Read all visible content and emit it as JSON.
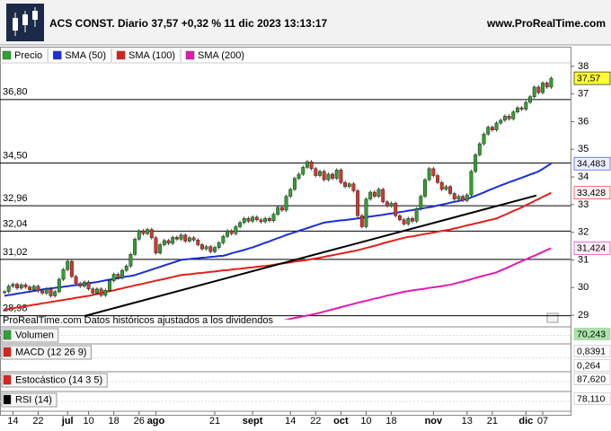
{
  "chart_data": {
    "type": "candlestick",
    "title": "ACS CONST. Diario 37,57 +0,32 % 11 dic 2023 13:13:17",
    "site": "www.ProRealTime.com",
    "note": "ProRealTime.com Datos históricos ajustados a los dividendos",
    "categories": [
      null,
      null,
      "14",
      null,
      null,
      null,
      null,
      null,
      "22",
      null,
      null,
      null,
      null,
      null,
      null,
      "jul",
      null,
      null,
      null,
      null,
      "10",
      null,
      null,
      null,
      null,
      null,
      "18",
      null,
      null,
      null,
      null,
      null,
      "26",
      null,
      null,
      null,
      "ago",
      null,
      null,
      null,
      null,
      null,
      null,
      null,
      null,
      null,
      null,
      null,
      null,
      null,
      "21",
      null,
      null,
      null,
      null,
      null,
      null,
      null,
      null,
      "sept",
      null,
      null,
      null,
      null,
      null,
      null,
      null,
      null,
      "14",
      null,
      null,
      null,
      null,
      null,
      "22",
      null,
      null,
      null,
      null,
      null,
      "oct",
      null,
      null,
      null,
      null,
      null,
      "10",
      null,
      null,
      null,
      null,
      null,
      "18",
      null,
      null,
      null,
      null,
      null,
      null,
      null,
      null,
      null,
      "nov",
      null,
      null,
      null,
      null,
      null,
      null,
      null,
      "13",
      null,
      null,
      null,
      null,
      null,
      "21",
      null,
      null,
      null,
      null,
      null,
      null,
      null,
      "dic",
      null,
      null,
      null,
      "07",
      null,
      null
    ],
    "candle_colors": {
      "up": "#2fa32f",
      "down": "#d8362c"
    },
    "series": [
      {
        "name": "Precio",
        "color": "#2fa32f",
        "values": [
          29.85,
          30.05,
          30.12,
          29.98,
          30.1,
          30.02,
          29.92,
          30.05,
          29.88,
          29.8,
          29.95,
          29.7,
          29.85,
          30.3,
          30.65,
          30.95,
          30.4,
          30.15,
          30.05,
          30.2,
          29.95,
          29.8,
          29.95,
          29.72,
          29.9,
          30.25,
          30.48,
          30.35,
          30.62,
          30.78,
          31.2,
          31.75,
          32.05,
          31.95,
          32.1,
          31.8,
          31.25,
          31.55,
          31.7,
          31.6,
          31.82,
          31.75,
          31.9,
          31.68,
          31.8,
          31.72,
          31.55,
          31.4,
          31.48,
          31.3,
          31.45,
          31.62,
          31.85,
          32.05,
          31.95,
          32.2,
          32.35,
          32.5,
          32.4,
          32.55,
          32.45,
          32.38,
          32.5,
          32.42,
          32.65,
          32.9,
          32.8,
          33.3,
          33.55,
          33.95,
          34.1,
          34.35,
          34.55,
          34.3,
          34.05,
          34.2,
          33.9,
          34.1,
          33.95,
          34.25,
          33.8,
          33.65,
          33.75,
          33.5,
          32.6,
          32.2,
          33.2,
          33.45,
          33.3,
          33.55,
          33.1,
          32.95,
          33.05,
          32.6,
          32.45,
          32.3,
          32.5,
          32.4,
          32.85,
          33.3,
          33.9,
          34.3,
          34.05,
          33.8,
          33.55,
          33.65,
          33.4,
          33.2,
          33.3,
          33.15,
          33.35,
          34.2,
          34.8,
          35.2,
          35.55,
          35.8,
          35.7,
          35.95,
          36.05,
          36.2,
          36.1,
          36.35,
          36.5,
          36.45,
          36.7,
          36.9,
          37.25,
          37.05,
          37.4,
          37.25,
          37.57
        ]
      },
      {
        "name": "SMA (50)",
        "color": "#1a2fd6",
        "values": [
          29.7,
          29.73,
          29.75,
          29.78,
          29.8,
          29.83,
          29.85,
          29.88,
          29.9,
          29.93,
          29.95,
          29.97,
          29.99,
          30.01,
          30.03,
          30.05,
          30.07,
          30.09,
          30.11,
          30.13,
          30.15,
          30.18,
          30.2,
          30.23,
          30.26,
          30.29,
          30.31,
          30.34,
          30.37,
          30.4,
          30.42,
          30.45,
          30.5,
          30.55,
          30.6,
          30.65,
          30.7,
          30.75,
          30.8,
          30.85,
          30.9,
          30.95,
          31.0,
          31.02,
          31.03,
          31.05,
          31.06,
          31.08,
          31.09,
          31.11,
          31.12,
          31.14,
          31.15,
          31.19,
          31.24,
          31.28,
          31.32,
          31.36,
          31.41,
          31.45,
          31.51,
          31.56,
          31.62,
          31.67,
          31.73,
          31.79,
          31.84,
          31.9,
          31.95,
          32.0,
          32.05,
          32.1,
          32.15,
          32.2,
          32.25,
          32.3,
          32.35,
          32.37,
          32.39,
          32.41,
          32.43,
          32.44,
          32.46,
          32.48,
          32.5,
          32.52,
          32.54,
          32.57,
          32.59,
          32.61,
          32.63,
          32.66,
          32.68,
          32.7,
          32.73,
          32.75,
          32.78,
          32.8,
          32.83,
          32.85,
          32.88,
          32.9,
          32.93,
          32.97,
          33.0,
          33.03,
          33.07,
          33.1,
          33.13,
          33.17,
          33.2,
          33.26,
          33.32,
          33.38,
          33.44,
          33.51,
          33.57,
          33.63,
          33.69,
          33.75,
          33.81,
          33.86,
          33.92,
          33.97,
          34.03,
          34.09,
          34.14,
          34.2,
          34.29,
          34.39,
          34.483
        ]
      },
      {
        "name": "SMA (100)",
        "color": "#e0211a",
        "values": [
          29.2,
          29.23,
          29.25,
          29.28,
          29.3,
          29.33,
          29.35,
          29.38,
          29.4,
          29.43,
          29.45,
          29.48,
          29.5,
          29.53,
          29.55,
          29.58,
          29.6,
          29.63,
          29.65,
          29.68,
          29.7,
          29.73,
          29.77,
          29.8,
          29.84,
          29.87,
          29.9,
          29.94,
          29.97,
          30.01,
          30.04,
          30.08,
          30.11,
          30.14,
          30.18,
          30.21,
          30.25,
          30.28,
          30.31,
          30.35,
          30.38,
          30.42,
          30.45,
          30.47,
          30.48,
          30.5,
          30.52,
          30.53,
          30.55,
          30.57,
          30.58,
          30.6,
          30.62,
          30.63,
          30.65,
          30.67,
          30.68,
          30.7,
          30.72,
          30.73,
          30.75,
          30.77,
          30.78,
          30.8,
          30.82,
          30.85,
          30.87,
          30.89,
          30.91,
          30.94,
          30.96,
          30.98,
          31.0,
          31.03,
          31.05,
          31.08,
          31.11,
          31.14,
          31.17,
          31.2,
          31.23,
          31.26,
          31.29,
          31.32,
          31.35,
          31.39,
          31.43,
          31.47,
          31.51,
          31.55,
          31.6,
          31.64,
          31.68,
          31.72,
          31.76,
          31.8,
          31.83,
          31.85,
          31.88,
          31.91,
          31.94,
          31.96,
          31.99,
          32.02,
          32.05,
          32.07,
          32.1,
          32.14,
          32.17,
          32.21,
          32.25,
          32.28,
          32.32,
          32.35,
          32.39,
          32.43,
          32.46,
          32.5,
          32.57,
          32.63,
          32.7,
          32.77,
          32.83,
          32.9,
          32.98,
          33.05,
          33.13,
          33.2,
          33.28,
          33.35,
          33.428
        ]
      },
      {
        "name": "SMA (200)",
        "color": "#e11ab4",
        "values": [
          null,
          null,
          null,
          null,
          null,
          null,
          null,
          null,
          null,
          null,
          null,
          null,
          null,
          null,
          null,
          null,
          null,
          null,
          null,
          null,
          null,
          null,
          null,
          null,
          null,
          null,
          null,
          null,
          null,
          null,
          null,
          null,
          null,
          null,
          null,
          null,
          null,
          null,
          null,
          null,
          null,
          null,
          null,
          null,
          null,
          null,
          null,
          null,
          null,
          null,
          null,
          null,
          null,
          null,
          null,
          null,
          null,
          null,
          null,
          null,
          28.62,
          28.65,
          28.68,
          28.71,
          28.74,
          28.77,
          28.8,
          28.83,
          28.87,
          28.9,
          28.93,
          28.96,
          28.99,
          29.02,
          29.05,
          29.09,
          29.13,
          29.17,
          29.21,
          29.25,
          29.29,
          29.33,
          29.37,
          29.41,
          29.45,
          29.49,
          29.52,
          29.56,
          29.6,
          29.63,
          29.67,
          29.71,
          29.74,
          29.78,
          29.81,
          29.85,
          29.87,
          29.9,
          29.92,
          29.94,
          29.96,
          29.99,
          30.01,
          30.03,
          30.05,
          30.08,
          30.1,
          30.14,
          30.18,
          30.22,
          30.26,
          30.3,
          30.35,
          30.39,
          30.43,
          30.47,
          30.51,
          30.55,
          30.62,
          30.68,
          30.75,
          30.82,
          30.89,
          30.95,
          31.02,
          31.09,
          31.15,
          31.22,
          31.29,
          31.36,
          31.424
        ]
      }
    ],
    "ylim": [
      28.58,
      38.71
    ],
    "yticks": [
      29,
      30,
      31,
      32,
      33,
      34,
      35,
      36,
      37,
      38
    ],
    "levels": [
      {
        "value": 36.8,
        "label": "36,80"
      },
      {
        "value": 34.5,
        "label": "34,50"
      },
      {
        "value": 32.96,
        "label": "32,96"
      },
      {
        "value": 32.04,
        "label": "32,04"
      },
      {
        "value": 31.02,
        "label": "31,02"
      },
      {
        "value": 28.98,
        "label": "28,98"
      }
    ],
    "trendline": {
      "from": 28.97,
      "to": 33.33,
      "color": "#000000"
    },
    "tags": [
      {
        "value": 37.57,
        "label": "37,57",
        "color": "#000000",
        "fill": "#ffff33"
      },
      {
        "value": 34.483,
        "label": "34,483",
        "color": "#1a2fd6",
        "fill": "#eef0ff"
      },
      {
        "value": 33.428,
        "label": "33,428",
        "color": "#e0211a",
        "fill": "#fff0f0"
      },
      {
        "value": 31.424,
        "label": "31,424",
        "color": "#e11ab4",
        "fill": "#ffeefa"
      }
    ],
    "panels": [
      {
        "name": "Volumen",
        "color": "#2fa32f",
        "tags": [
          {
            "value": 70.243,
            "label": "70,243",
            "color": "#000000",
            "fill": "#a8e6a8"
          }
        ]
      },
      {
        "name": "MACD (12 26 9)",
        "color": "#e0211a",
        "tags": [
          {
            "value": 0.8391,
            "label": "0,8391",
            "color": "#e0211a",
            "fill": "#ffffff"
          },
          {
            "value": 0.264,
            "label": "0,264",
            "color": "#2fa32f",
            "fill": "#ffffff"
          }
        ]
      },
      {
        "name": "Estocástico (14 3 5)",
        "color": "#e0211a",
        "tags": [
          {
            "value": 87.62,
            "label": "87,620",
            "color": "#000000",
            "fill": "#ffffff"
          }
        ]
      },
      {
        "name": "RSI (14)",
        "color": "#000000",
        "tags": [
          {
            "value": 78.11,
            "label": "78,110",
            "color": "#000000",
            "fill": "#ffffff"
          }
        ]
      }
    ]
  }
}
